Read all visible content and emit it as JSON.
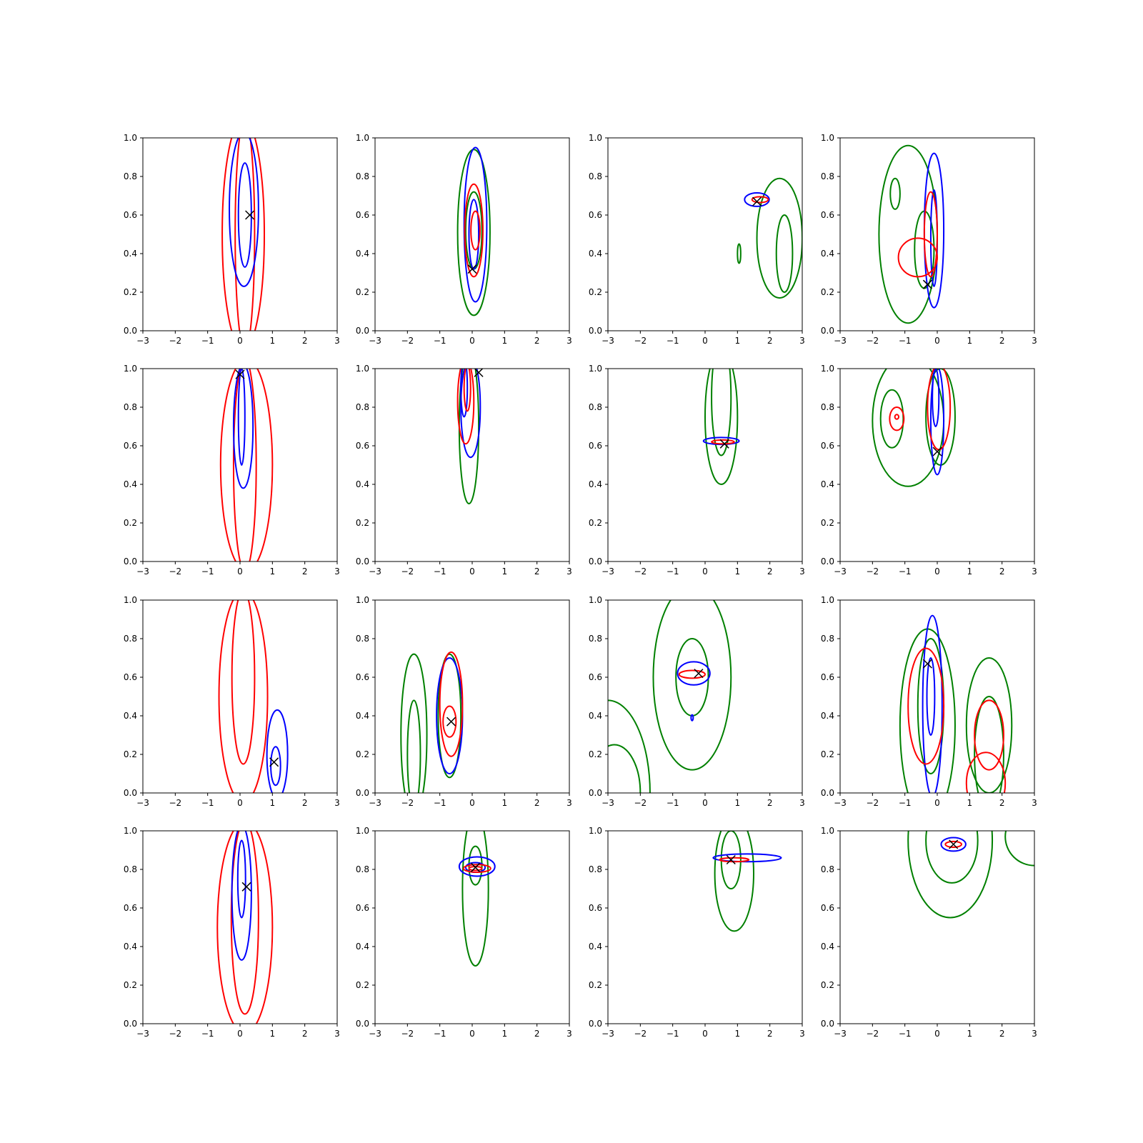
{
  "colors": {
    "series_1": "#ff0000",
    "series_2": "#0000ff",
    "series_3": "#008000",
    "marker": "#000000"
  },
  "chart_data": {
    "type": "contour",
    "layout": "4x4 grid of panels",
    "xlim": [
      -3,
      3
    ],
    "ylim": [
      0,
      1
    ],
    "xticks": [
      "−3",
      "−2",
      "−1",
      "0",
      "1",
      "2",
      "3"
    ],
    "yticks": [
      "0.0",
      "0.2",
      "0.4",
      "0.6",
      "0.8",
      "1.0"
    ],
    "grid": false,
    "legend": "none",
    "marker_symbol": "x",
    "panels": [
      {
        "marker": [
          0.3,
          0.6
        ],
        "contours": [
          {
            "color": "red",
            "cx": 0.1,
            "cy": 0.5,
            "rx": 0.65,
            "ry": 0.6
          },
          {
            "color": "red",
            "cx": 0.15,
            "cy": 0.5,
            "rx": 0.3,
            "ry": 0.6
          },
          {
            "color": "blue",
            "cx": 0.12,
            "cy": 0.63,
            "rx": 0.45,
            "ry": 0.4
          },
          {
            "color": "blue",
            "cx": 0.15,
            "cy": 0.6,
            "rx": 0.2,
            "ry": 0.27
          }
        ]
      },
      {
        "marker": [
          0.0,
          0.32
        ],
        "contours": [
          {
            "color": "green",
            "cx": 0.05,
            "cy": 0.51,
            "rx": 0.5,
            "ry": 0.43
          },
          {
            "color": "green",
            "cx": 0.05,
            "cy": 0.52,
            "rx": 0.25,
            "ry": 0.2
          },
          {
            "color": "blue",
            "cx": 0.1,
            "cy": 0.55,
            "rx": 0.35,
            "ry": 0.4
          },
          {
            "color": "blue",
            "cx": 0.05,
            "cy": 0.5,
            "rx": 0.15,
            "ry": 0.18
          },
          {
            "color": "red",
            "cx": 0.05,
            "cy": 0.52,
            "rx": 0.28,
            "ry": 0.24
          },
          {
            "color": "red",
            "cx": 0.1,
            "cy": 0.52,
            "rx": 0.14,
            "ry": 0.1
          }
        ]
      },
      {
        "marker": [
          1.6,
          0.67
        ],
        "contours": [
          {
            "color": "green",
            "cx": 2.3,
            "cy": 0.48,
            "rx": 0.7,
            "ry": 0.31
          },
          {
            "color": "green",
            "cx": 2.45,
            "cy": 0.4,
            "rx": 0.25,
            "ry": 0.2
          },
          {
            "color": "green",
            "cx": 1.05,
            "cy": 0.4,
            "rx": 0.05,
            "ry": 0.05
          },
          {
            "color": "blue",
            "cx": 1.6,
            "cy": 0.68,
            "rx": 0.38,
            "ry": 0.035
          },
          {
            "color": "red",
            "cx": 1.7,
            "cy": 0.68,
            "rx": 0.25,
            "ry": 0.015
          }
        ]
      },
      {
        "marker": [
          -0.3,
          0.24
        ],
        "contours": [
          {
            "color": "green",
            "cx": -0.9,
            "cy": 0.5,
            "rx": 0.9,
            "ry": 0.46
          },
          {
            "color": "green",
            "cx": -1.3,
            "cy": 0.71,
            "rx": 0.15,
            "ry": 0.08
          },
          {
            "color": "green",
            "cx": -0.4,
            "cy": 0.42,
            "rx": 0.3,
            "ry": 0.2
          },
          {
            "color": "blue",
            "cx": -0.1,
            "cy": 0.52,
            "rx": 0.3,
            "ry": 0.4
          },
          {
            "color": "blue",
            "cx": -0.1,
            "cy": 0.48,
            "rx": 0.1,
            "ry": 0.25
          },
          {
            "color": "red",
            "cx": -0.6,
            "cy": 0.38,
            "rx": 0.6,
            "ry": 0.1
          },
          {
            "color": "red",
            "cx": -0.2,
            "cy": 0.5,
            "rx": 0.2,
            "ry": 0.22
          }
        ]
      },
      {
        "marker": [
          0.0,
          0.97
        ],
        "contours": [
          {
            "color": "red",
            "cx": 0.2,
            "cy": 0.5,
            "rx": 0.8,
            "ry": 0.55
          },
          {
            "color": "red",
            "cx": 0.15,
            "cy": 0.5,
            "rx": 0.35,
            "ry": 0.55
          },
          {
            "color": "blue",
            "cx": 0.1,
            "cy": 0.7,
            "rx": 0.3,
            "ry": 0.32
          },
          {
            "color": "blue",
            "cx": 0.05,
            "cy": 0.75,
            "rx": 0.1,
            "ry": 0.25
          }
        ]
      },
      {
        "marker": [
          0.2,
          0.98
        ],
        "contours": [
          {
            "color": "green",
            "cx": -0.1,
            "cy": 0.7,
            "rx": 0.3,
            "ry": 0.4
          },
          {
            "color": "blue",
            "cx": -0.05,
            "cy": 0.8,
            "rx": 0.3,
            "ry": 0.26
          },
          {
            "color": "blue",
            "cx": -0.25,
            "cy": 0.9,
            "rx": 0.1,
            "ry": 0.15
          },
          {
            "color": "red",
            "cx": -0.2,
            "cy": 0.83,
            "rx": 0.25,
            "ry": 0.22
          },
          {
            "color": "red",
            "cx": -0.15,
            "cy": 0.9,
            "rx": 0.1,
            "ry": 0.12
          }
        ]
      },
      {
        "marker": [
          0.6,
          0.61
        ],
        "contours": [
          {
            "color": "green",
            "cx": 0.5,
            "cy": 0.75,
            "rx": 0.5,
            "ry": 0.35
          },
          {
            "color": "green",
            "cx": 0.5,
            "cy": 0.85,
            "rx": 0.3,
            "ry": 0.3
          },
          {
            "color": "blue",
            "cx": 0.5,
            "cy": 0.625,
            "rx": 0.55,
            "ry": 0.018
          },
          {
            "color": "red",
            "cx": 0.55,
            "cy": 0.62,
            "rx": 0.35,
            "ry": 0.01
          }
        ]
      },
      {
        "marker": [
          0.0,
          0.57
        ],
        "contours": [
          {
            "color": "green",
            "cx": -0.9,
            "cy": 0.73,
            "rx": 1.1,
            "ry": 0.34
          },
          {
            "color": "green",
            "cx": 0.1,
            "cy": 0.75,
            "rx": 0.45,
            "ry": 0.25
          },
          {
            "color": "green",
            "cx": -1.4,
            "cy": 0.74,
            "rx": 0.35,
            "ry": 0.15
          },
          {
            "color": "blue",
            "cx": 0.0,
            "cy": 0.73,
            "rx": 0.2,
            "ry": 0.28
          },
          {
            "color": "blue",
            "cx": -0.05,
            "cy": 0.85,
            "rx": 0.1,
            "ry": 0.15
          },
          {
            "color": "red",
            "cx": 0.05,
            "cy": 0.8,
            "rx": 0.35,
            "ry": 0.22
          },
          {
            "color": "red",
            "cx": -1.25,
            "cy": 0.74,
            "rx": 0.22,
            "ry": 0.06
          },
          {
            "color": "red",
            "cx": -1.25,
            "cy": 0.75,
            "rx": 0.06,
            "ry": 0.012
          }
        ]
      },
      {
        "marker": [
          1.05,
          0.16
        ],
        "contours": [
          {
            "color": "red",
            "cx": 0.1,
            "cy": 0.5,
            "rx": 0.75,
            "ry": 0.55
          },
          {
            "color": "red",
            "cx": 0.1,
            "cy": 0.6,
            "rx": 0.35,
            "ry": 0.45
          },
          {
            "color": "blue",
            "cx": 1.15,
            "cy": 0.2,
            "rx": 0.32,
            "ry": 0.23
          },
          {
            "color": "blue",
            "cx": 1.1,
            "cy": 0.14,
            "rx": 0.15,
            "ry": 0.1
          }
        ]
      },
      {
        "marker": [
          -0.65,
          0.37
        ],
        "contours": [
          {
            "color": "green",
            "cx": -1.8,
            "cy": 0.3,
            "rx": 0.4,
            "ry": 0.42
          },
          {
            "color": "green",
            "cx": -1.8,
            "cy": 0.2,
            "rx": 0.2,
            "ry": 0.28
          },
          {
            "color": "green",
            "cx": -0.7,
            "cy": 0.4,
            "rx": 0.35,
            "ry": 0.32
          },
          {
            "color": "blue",
            "cx": -0.7,
            "cy": 0.4,
            "rx": 0.4,
            "ry": 0.3
          },
          {
            "color": "red",
            "cx": -0.65,
            "cy": 0.46,
            "rx": 0.35,
            "ry": 0.27
          },
          {
            "color": "red",
            "cx": -0.7,
            "cy": 0.37,
            "rx": 0.2,
            "ry": 0.08
          }
        ]
      },
      {
        "marker": [
          -0.2,
          0.62
        ],
        "contours": [
          {
            "color": "green",
            "cx": -0.4,
            "cy": 0.6,
            "rx": 1.2,
            "ry": 0.48
          },
          {
            "color": "green",
            "cx": -0.4,
            "cy": 0.6,
            "rx": 0.5,
            "ry": 0.2
          },
          {
            "color": "green",
            "cx": -3.0,
            "cy": 0.0,
            "rx": 1.3,
            "ry": 0.48
          },
          {
            "color": "green",
            "cx": -2.8,
            "cy": 0.0,
            "rx": 0.8,
            "ry": 0.25
          },
          {
            "color": "blue",
            "cx": -0.35,
            "cy": 0.62,
            "rx": 0.5,
            "ry": 0.06
          },
          {
            "color": "blue",
            "cx": -0.4,
            "cy": 0.39,
            "rx": 0.03,
            "ry": 0.015
          },
          {
            "color": "red",
            "cx": -0.4,
            "cy": 0.615,
            "rx": 0.4,
            "ry": 0.02
          }
        ]
      },
      {
        "marker": [
          -0.3,
          0.67
        ],
        "contours": [
          {
            "color": "green",
            "cx": -0.3,
            "cy": 0.35,
            "rx": 0.85,
            "ry": 0.5
          },
          {
            "color": "green",
            "cx": -0.2,
            "cy": 0.45,
            "rx": 0.4,
            "ry": 0.35
          },
          {
            "color": "green",
            "cx": 1.6,
            "cy": 0.35,
            "rx": 0.7,
            "ry": 0.35
          },
          {
            "color": "green",
            "cx": 1.6,
            "cy": 0.2,
            "rx": 0.45,
            "ry": 0.3
          },
          {
            "color": "blue",
            "cx": -0.15,
            "cy": 0.45,
            "rx": 0.3,
            "ry": 0.47
          },
          {
            "color": "blue",
            "cx": -0.2,
            "cy": 0.5,
            "rx": 0.12,
            "ry": 0.2
          },
          {
            "color": "red",
            "cx": -0.35,
            "cy": 0.45,
            "rx": 0.55,
            "ry": 0.3
          },
          {
            "color": "red",
            "cx": 1.6,
            "cy": 0.3,
            "rx": 0.45,
            "ry": 0.18
          },
          {
            "color": "red",
            "cx": 1.5,
            "cy": 0.05,
            "rx": 0.6,
            "ry": 0.16
          }
        ]
      },
      {
        "marker": [
          0.2,
          0.71
        ],
        "contours": [
          {
            "color": "red",
            "cx": 0.15,
            "cy": 0.5,
            "rx": 0.85,
            "ry": 0.55
          },
          {
            "color": "red",
            "cx": 0.15,
            "cy": 0.55,
            "rx": 0.42,
            "ry": 0.5
          },
          {
            "color": "blue",
            "cx": 0.05,
            "cy": 0.68,
            "rx": 0.3,
            "ry": 0.35
          },
          {
            "color": "blue",
            "cx": 0.05,
            "cy": 0.75,
            "rx": 0.12,
            "ry": 0.2
          }
        ]
      },
      {
        "marker": [
          0.1,
          0.81
        ],
        "contours": [
          {
            "color": "green",
            "cx": 0.1,
            "cy": 0.7,
            "rx": 0.4,
            "ry": 0.4
          },
          {
            "color": "green",
            "cx": 0.1,
            "cy": 0.82,
            "rx": 0.2,
            "ry": 0.1
          },
          {
            "color": "blue",
            "cx": 0.15,
            "cy": 0.815,
            "rx": 0.55,
            "ry": 0.05
          },
          {
            "color": "blue",
            "cx": 0.1,
            "cy": 0.81,
            "rx": 0.3,
            "ry": 0.025
          },
          {
            "color": "red",
            "cx": 0.15,
            "cy": 0.805,
            "rx": 0.42,
            "ry": 0.02
          },
          {
            "color": "red",
            "cx": 0.1,
            "cy": 0.805,
            "rx": 0.2,
            "ry": 0.01
          }
        ]
      },
      {
        "marker": [
          0.8,
          0.85
        ],
        "contours": [
          {
            "color": "green",
            "cx": 0.9,
            "cy": 0.78,
            "rx": 0.6,
            "ry": 0.3
          },
          {
            "color": "green",
            "cx": 0.8,
            "cy": 0.85,
            "rx": 0.3,
            "ry": 0.15
          },
          {
            "color": "blue",
            "cx": 1.3,
            "cy": 0.86,
            "rx": 1.05,
            "ry": 0.02
          },
          {
            "color": "red",
            "cx": 0.9,
            "cy": 0.85,
            "rx": 0.45,
            "ry": 0.01
          }
        ]
      },
      {
        "marker": [
          0.5,
          0.93
        ],
        "contours": [
          {
            "color": "green",
            "cx": 0.4,
            "cy": 0.95,
            "rx": 1.3,
            "ry": 0.4
          },
          {
            "color": "green",
            "cx": 0.45,
            "cy": 0.95,
            "rx": 0.8,
            "ry": 0.22
          },
          {
            "color": "green",
            "cx": 3.0,
            "cy": 0.97,
            "rx": 0.9,
            "ry": 0.15
          },
          {
            "color": "blue",
            "cx": 0.5,
            "cy": 0.93,
            "rx": 0.38,
            "ry": 0.035
          },
          {
            "color": "red",
            "cx": 0.5,
            "cy": 0.93,
            "rx": 0.25,
            "ry": 0.015
          }
        ]
      }
    ]
  }
}
